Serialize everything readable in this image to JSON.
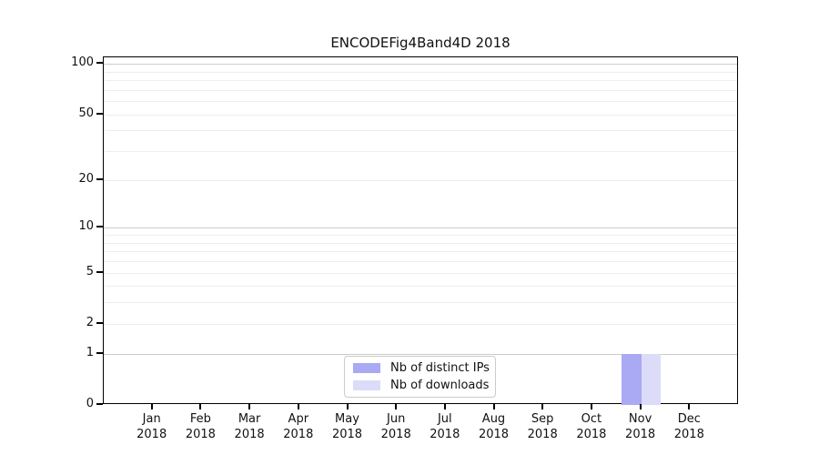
{
  "title": "ENCODEFig4Band4D 2018",
  "chart_data": {
    "type": "bar",
    "title": "ENCODEFig4Band4D 2018",
    "categories": [
      "Jan 2018",
      "Feb 2018",
      "Mar 2018",
      "Apr 2018",
      "May 2018",
      "Jun 2018",
      "Jul 2018",
      "Aug 2018",
      "Sep 2018",
      "Oct 2018",
      "Nov 2018",
      "Dec 2018"
    ],
    "series": [
      {
        "name": "Nb of distinct IPs",
        "color": "#a9a9f4",
        "values": [
          0,
          0,
          0,
          0,
          0,
          0,
          0,
          0,
          0,
          0,
          1,
          0
        ]
      },
      {
        "name": "Nb of downloads",
        "color": "#dcdcf9",
        "values": [
          0,
          0,
          0,
          0,
          0,
          0,
          0,
          0,
          0,
          0,
          1,
          0
        ]
      }
    ],
    "xlabel": "",
    "ylabel": "",
    "y_axis": {
      "scale": "log1p",
      "ylim": [
        0,
        110
      ],
      "tick_values": [
        0,
        1,
        2,
        5,
        10,
        20,
        50,
        100
      ],
      "tick_labels": [
        "0",
        "1",
        "2",
        "5",
        "10",
        "20",
        "50",
        "100"
      ],
      "major_gridlines": [
        1,
        10,
        100
      ],
      "minor_gridlines": [
        2,
        3,
        4,
        5,
        6,
        7,
        8,
        9,
        20,
        30,
        40,
        50,
        60,
        70,
        80,
        90
      ]
    },
    "grid": true,
    "legend": {
      "position": "lower center"
    }
  },
  "colors": {
    "axis": "#000000",
    "text": "#111111",
    "major_grid": "#cccccc",
    "minor_grid": "#ededed",
    "legend_border": "#cccccc",
    "bar_distinct_ips": "#a9a9f4",
    "bar_downloads": "#dcdcf9"
  }
}
